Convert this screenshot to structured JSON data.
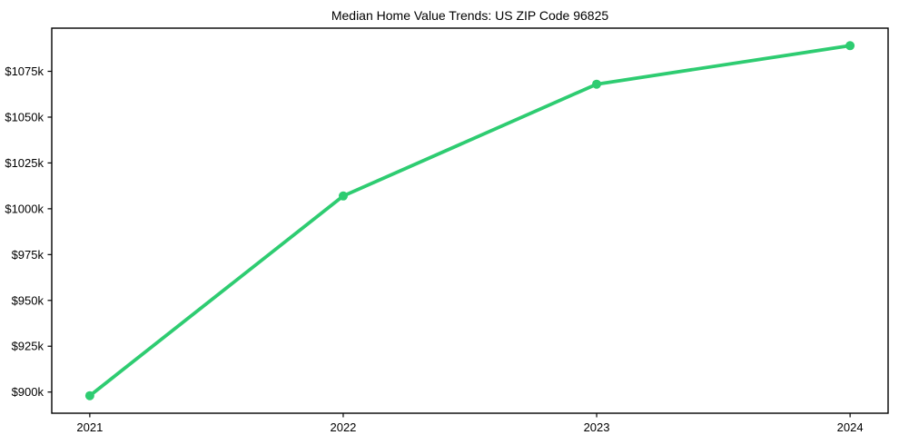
{
  "chart_data": {
    "type": "line",
    "title": "Median Home Value Trends: US ZIP Code 96825",
    "x": [
      2021,
      2022,
      2023,
      2024
    ],
    "x_tick_labels": [
      "2021",
      "2022",
      "2023",
      "2024"
    ],
    "values": [
      898,
      1007,
      1068,
      1089
    ],
    "value_unit": "thousand USD",
    "y_ticks": [
      900,
      925,
      950,
      975,
      1000,
      1025,
      1050,
      1075
    ],
    "y_tick_labels": [
      "$900k",
      "$925k",
      "$950k",
      "$975k",
      "$1000k",
      "$1025k",
      "$1050k",
      "$1075k"
    ],
    "xlim": [
      2020.85,
      2024.15
    ],
    "ylim": [
      888.45,
      1098.55
    ],
    "grid": false,
    "legend": "none",
    "line_color": "#2ecc71",
    "marker_color": "#2ecc71",
    "axis_color": "#000000",
    "text_color": "#000000",
    "background_color": "#ffffff"
  }
}
